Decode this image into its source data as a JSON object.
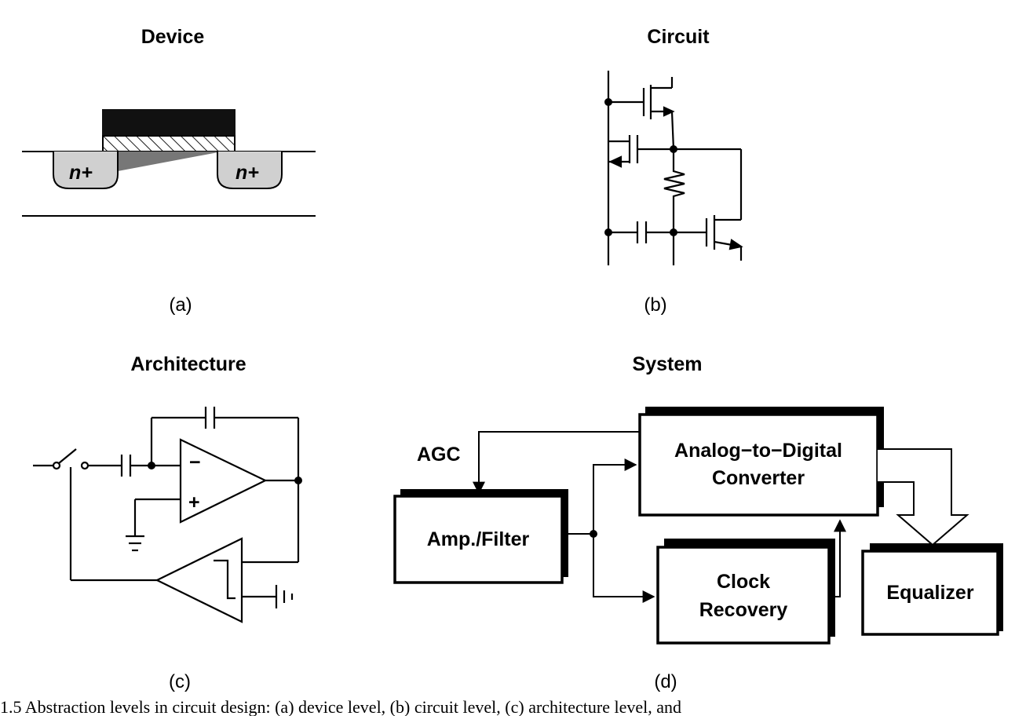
{
  "panels": {
    "a": {
      "title": "Device",
      "label": "(a)",
      "region_label": "n+"
    },
    "b": {
      "title": "Circuit",
      "label": "(b)"
    },
    "c": {
      "title": "Architecture",
      "label": "(c)",
      "minus": "−",
      "plus": "+"
    },
    "d": {
      "title": "System",
      "label": "(d)",
      "agc": "AGC",
      "blocks": {
        "amp": "Amp./Filter",
        "adc_line1": "Analog−to−Digital",
        "adc_line2": "Converter",
        "clk_line1": "Clock",
        "clk_line2": "Recovery",
        "eq": "Equalizer"
      }
    }
  },
  "caption": "1.5    Abstraction levels in circuit design: (a) device level, (b) circuit level, (c) architecture level, and"
}
